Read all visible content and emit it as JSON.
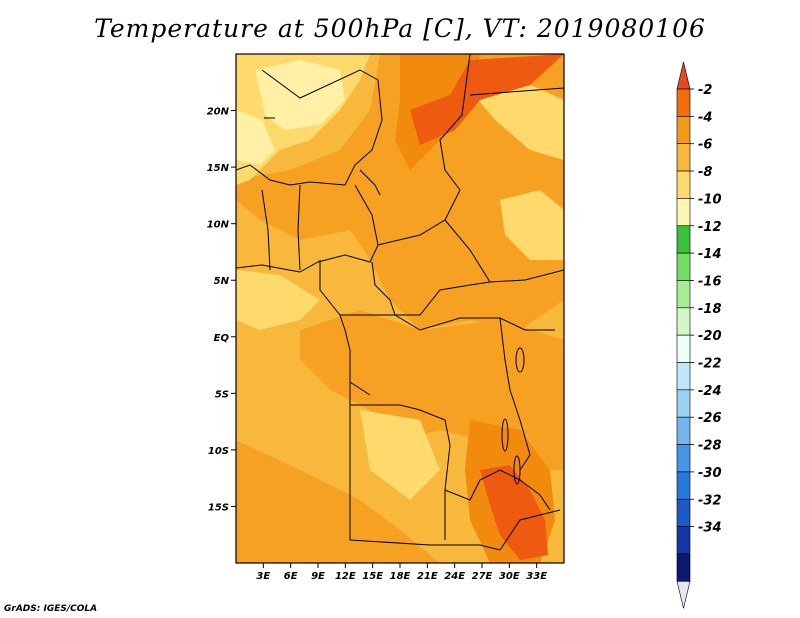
{
  "title": "Temperature at 500hPa [C], VT: 2019080106",
  "credit": "GrADS: IGES/COLA",
  "colors": {
    "base": "#f7b83c",
    "light": "#fed96b",
    "pale": "#fff0a5",
    "mid": "#f7a123",
    "warm": "#f28a0e",
    "hot": "#ee5a10",
    "border": "#000000"
  },
  "map": {
    "lon_range": [
      0,
      36
    ],
    "lat_range": [
      -20,
      25
    ],
    "lon_ticks": [
      "3E",
      "6E",
      "9E",
      "12E",
      "15E",
      "18E",
      "21E",
      "24E",
      "27E",
      "30E",
      "33E"
    ],
    "lat_ticks": [
      "20N",
      "15N",
      "10N",
      "5N",
      "EQ",
      "5S",
      "10S",
      "15S"
    ]
  },
  "colorbar": {
    "labels": [
      "-2",
      "-4",
      "-6",
      "-8",
      "-10",
      "-12",
      "-14",
      "-16",
      "-18",
      "-20",
      "-22",
      "-24",
      "-26",
      "-28",
      "-30",
      "-32",
      "-34"
    ],
    "colors": [
      "#e8472a",
      "#f26d0c",
      "#f29a16",
      "#f7b83c",
      "#fed96b",
      "#fff5b2",
      "#37c339",
      "#72de63",
      "#a6ed96",
      "#d4f7c7",
      "#eefff8",
      "#bfe6fa",
      "#9ad0f3",
      "#72b5ef",
      "#4595ea",
      "#2679db",
      "#1b59c6",
      "#1136a5",
      "#0c1770",
      "#e6e6f2"
    ]
  }
}
